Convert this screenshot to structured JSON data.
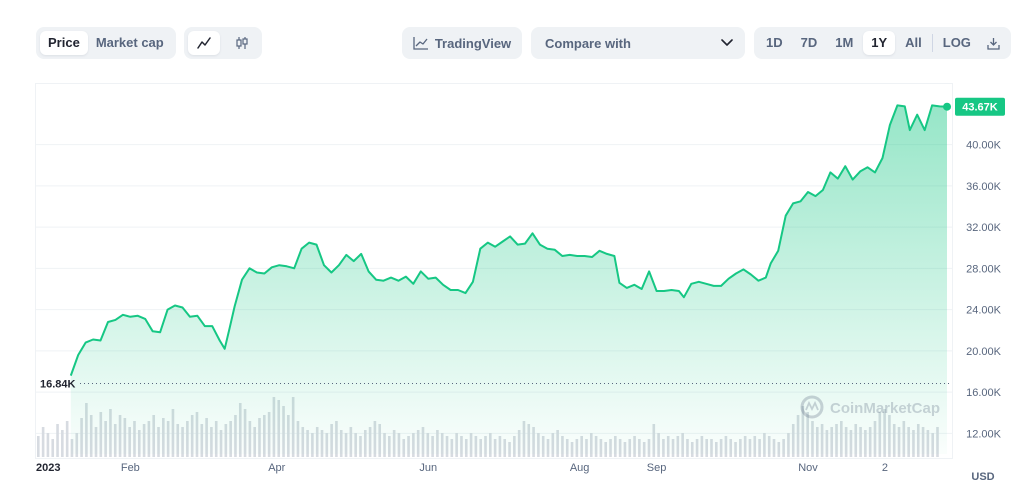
{
  "toolbar": {
    "view_tabs": [
      "Price",
      "Market cap"
    ],
    "active_view": "Price",
    "chart_type_icons": [
      "line-chart-icon",
      "candlestick-icon"
    ],
    "tradingview_label": "TradingView",
    "compare_label": "Compare with",
    "ranges": [
      "1D",
      "7D",
      "1M",
      "1Y",
      "All",
      "LOG"
    ],
    "active_range": "1Y",
    "download_icon": "download-icon"
  },
  "colors": {
    "line": "#16c784",
    "price_badge_bg": "#16c784",
    "volume_bar": "#d7dbe1",
    "grid": "#eff2f5",
    "axis_text": "#58667e"
  },
  "chart_data": {
    "type": "area",
    "title": "",
    "xlabel": "",
    "ylabel": "",
    "currency": "USD",
    "ylim": [
      10000,
      45000
    ],
    "y_ticks": [
      12000,
      16000,
      20000,
      24000,
      28000,
      32000,
      36000,
      40000
    ],
    "y_tick_labels": [
      "12.00K",
      "16.00K",
      "20.00K",
      "24.00K",
      "28.00K",
      "32.00K",
      "36.00K",
      "40.00K"
    ],
    "x_tick_labels": [
      {
        "label": "2023",
        "date": "2023-01-01"
      },
      {
        "label": "Feb",
        "date": "2023-02-01"
      },
      {
        "label": "Apr",
        "date": "2023-04-01"
      },
      {
        "label": "Jun",
        "date": "2023-06-01"
      },
      {
        "label": "Aug",
        "date": "2023-08-01"
      },
      {
        "label": "Sep",
        "date": "2023-09-01"
      },
      {
        "label": "Nov",
        "date": "2023-11-01"
      },
      {
        "label": "2",
        "date": "2023-12-02"
      }
    ],
    "baseline": {
      "value": 16840,
      "label": "16.84K"
    },
    "last_price": {
      "value": 43670,
      "label": "43.67K"
    },
    "x_range": [
      "2022-12-25",
      "2023-12-29"
    ],
    "series": [
      {
        "points": [
          [
            "2023-01-08",
            17600
          ],
          [
            "2023-01-11",
            19600
          ],
          [
            "2023-01-14",
            20800
          ],
          [
            "2023-01-17",
            21100
          ],
          [
            "2023-01-20",
            21000
          ],
          [
            "2023-01-23",
            22800
          ],
          [
            "2023-01-26",
            23000
          ],
          [
            "2023-01-29",
            23500
          ],
          [
            "2023-02-01",
            23300
          ],
          [
            "2023-02-04",
            23400
          ],
          [
            "2023-02-07",
            23100
          ],
          [
            "2023-02-10",
            21900
          ],
          [
            "2023-02-13",
            21800
          ],
          [
            "2023-02-16",
            24000
          ],
          [
            "2023-02-19",
            24400
          ],
          [
            "2023-02-22",
            24200
          ],
          [
            "2023-02-25",
            23300
          ],
          [
            "2023-02-28",
            23400
          ],
          [
            "2023-03-03",
            22400
          ],
          [
            "2023-03-06",
            22400
          ],
          [
            "2023-03-09",
            21000
          ],
          [
            "2023-03-11",
            20200
          ],
          [
            "2023-03-13",
            22200
          ],
          [
            "2023-03-15",
            24300
          ],
          [
            "2023-03-18",
            26900
          ],
          [
            "2023-03-21",
            28000
          ],
          [
            "2023-03-24",
            27600
          ],
          [
            "2023-03-27",
            27500
          ],
          [
            "2023-03-30",
            28100
          ],
          [
            "2023-04-02",
            28300
          ],
          [
            "2023-04-05",
            28200
          ],
          [
            "2023-04-08",
            28000
          ],
          [
            "2023-04-11",
            29900
          ],
          [
            "2023-04-14",
            30500
          ],
          [
            "2023-04-17",
            30300
          ],
          [
            "2023-04-20",
            28300
          ],
          [
            "2023-04-23",
            27600
          ],
          [
            "2023-04-26",
            28300
          ],
          [
            "2023-04-29",
            29300
          ],
          [
            "2023-05-02",
            28700
          ],
          [
            "2023-05-05",
            29400
          ],
          [
            "2023-05-08",
            27700
          ],
          [
            "2023-05-11",
            26900
          ],
          [
            "2023-05-14",
            26800
          ],
          [
            "2023-05-17",
            27100
          ],
          [
            "2023-05-20",
            26800
          ],
          [
            "2023-05-23",
            27200
          ],
          [
            "2023-05-26",
            26500
          ],
          [
            "2023-05-29",
            27700
          ],
          [
            "2023-06-01",
            27000
          ],
          [
            "2023-06-04",
            27100
          ],
          [
            "2023-06-07",
            26400
          ],
          [
            "2023-06-10",
            25900
          ],
          [
            "2023-06-13",
            25900
          ],
          [
            "2023-06-16",
            25600
          ],
          [
            "2023-06-19",
            26700
          ],
          [
            "2023-06-22",
            29900
          ],
          [
            "2023-06-25",
            30500
          ],
          [
            "2023-06-28",
            30100
          ],
          [
            "2023-07-01",
            30600
          ],
          [
            "2023-07-04",
            31100
          ],
          [
            "2023-07-07",
            30300
          ],
          [
            "2023-07-10",
            30400
          ],
          [
            "2023-07-13",
            31400
          ],
          [
            "2023-07-16",
            30300
          ],
          [
            "2023-07-19",
            29900
          ],
          [
            "2023-07-22",
            29800
          ],
          [
            "2023-07-25",
            29200
          ],
          [
            "2023-07-28",
            29300
          ],
          [
            "2023-07-31",
            29200
          ],
          [
            "2023-08-03",
            29200
          ],
          [
            "2023-08-06",
            29100
          ],
          [
            "2023-08-09",
            29700
          ],
          [
            "2023-08-12",
            29400
          ],
          [
            "2023-08-15",
            29200
          ],
          [
            "2023-08-17",
            26600
          ],
          [
            "2023-08-20",
            26100
          ],
          [
            "2023-08-23",
            26400
          ],
          [
            "2023-08-26",
            26000
          ],
          [
            "2023-08-29",
            27700
          ],
          [
            "2023-09-01",
            25800
          ],
          [
            "2023-09-04",
            25800
          ],
          [
            "2023-09-07",
            25900
          ],
          [
            "2023-09-10",
            25800
          ],
          [
            "2023-09-12",
            25200
          ],
          [
            "2023-09-15",
            26500
          ],
          [
            "2023-09-18",
            26700
          ],
          [
            "2023-09-21",
            26500
          ],
          [
            "2023-09-24",
            26300
          ],
          [
            "2023-09-27",
            26300
          ],
          [
            "2023-09-30",
            27000
          ],
          [
            "2023-10-03",
            27500
          ],
          [
            "2023-10-06",
            27900
          ],
          [
            "2023-10-09",
            27400
          ],
          [
            "2023-10-12",
            26800
          ],
          [
            "2023-10-15",
            27100
          ],
          [
            "2023-10-17",
            28500
          ],
          [
            "2023-10-20",
            29700
          ],
          [
            "2023-10-23",
            33100
          ],
          [
            "2023-10-26",
            34300
          ],
          [
            "2023-10-29",
            34500
          ],
          [
            "2023-11-01",
            35400
          ],
          [
            "2023-11-04",
            35000
          ],
          [
            "2023-11-07",
            35600
          ],
          [
            "2023-11-10",
            37300
          ],
          [
            "2023-11-13",
            36700
          ],
          [
            "2023-11-16",
            37900
          ],
          [
            "2023-11-19",
            36600
          ],
          [
            "2023-11-22",
            37400
          ],
          [
            "2023-11-25",
            37800
          ],
          [
            "2023-11-28",
            37300
          ],
          [
            "2023-12-01",
            38700
          ],
          [
            "2023-12-04",
            41900
          ],
          [
            "2023-12-07",
            43800
          ],
          [
            "2023-12-10",
            43700
          ],
          [
            "2023-12-12",
            41400
          ],
          [
            "2023-12-15",
            42900
          ],
          [
            "2023-12-18",
            41400
          ],
          [
            "2023-12-21",
            43800
          ],
          [
            "2023-12-24",
            43700
          ],
          [
            "2023-12-27",
            43670
          ]
        ]
      }
    ],
    "volume_relative": [
      0.35,
      0.5,
      0.4,
      0.3,
      0.55,
      0.45,
      0.6,
      0.3,
      0.4,
      0.65,
      0.9,
      0.7,
      0.5,
      0.75,
      0.6,
      0.8,
      0.55,
      0.7,
      0.65,
      0.5,
      0.6,
      0.45,
      0.55,
      0.6,
      0.7,
      0.5,
      0.65,
      0.6,
      0.8,
      0.55,
      0.5,
      0.6,
      0.7,
      0.75,
      0.55,
      0.65,
      0.5,
      0.6,
      0.45,
      0.55,
      0.6,
      0.7,
      0.9,
      0.8,
      0.6,
      0.5,
      0.65,
      0.7,
      0.75,
      1.0,
      0.95,
      0.85,
      0.7,
      1.0,
      0.6,
      0.5,
      0.45,
      0.4,
      0.5,
      0.45,
      0.4,
      0.55,
      0.6,
      0.45,
      0.4,
      0.5,
      0.4,
      0.35,
      0.45,
      0.5,
      0.6,
      0.55,
      0.4,
      0.35,
      0.45,
      0.4,
      0.3,
      0.35,
      0.4,
      0.45,
      0.5,
      0.4,
      0.35,
      0.45,
      0.4,
      0.35,
      0.3,
      0.4,
      0.35,
      0.3,
      0.4,
      0.35,
      0.3,
      0.35,
      0.4,
      0.3,
      0.35,
      0.3,
      0.25,
      0.35,
      0.45,
      0.6,
      0.55,
      0.5,
      0.4,
      0.35,
      0.3,
      0.4,
      0.45,
      0.35,
      0.3,
      0.25,
      0.3,
      0.35,
      0.3,
      0.4,
      0.35,
      0.3,
      0.25,
      0.3,
      0.35,
      0.3,
      0.25,
      0.3,
      0.35,
      0.3,
      0.25,
      0.3,
      0.55,
      0.4,
      0.3,
      0.35,
      0.3,
      0.35,
      0.4,
      0.3,
      0.25,
      0.3,
      0.35,
      0.3,
      0.3,
      0.25,
      0.3,
      0.35,
      0.3,
      0.25,
      0.3,
      0.35,
      0.3,
      0.35,
      0.3,
      0.4,
      0.35,
      0.3,
      0.25,
      0.3,
      0.4,
      0.55,
      0.7,
      0.85,
      0.75,
      0.6,
      0.5,
      0.55,
      0.45,
      0.5,
      0.55,
      0.6,
      0.5,
      0.45,
      0.55,
      0.5,
      0.45,
      0.5,
      0.6,
      0.75,
      0.8,
      0.7,
      0.55,
      0.5,
      0.6,
      0.5,
      0.45,
      0.55,
      0.5,
      0.45,
      0.4,
      0.5
    ],
    "watermark": "CoinMarketCap"
  }
}
